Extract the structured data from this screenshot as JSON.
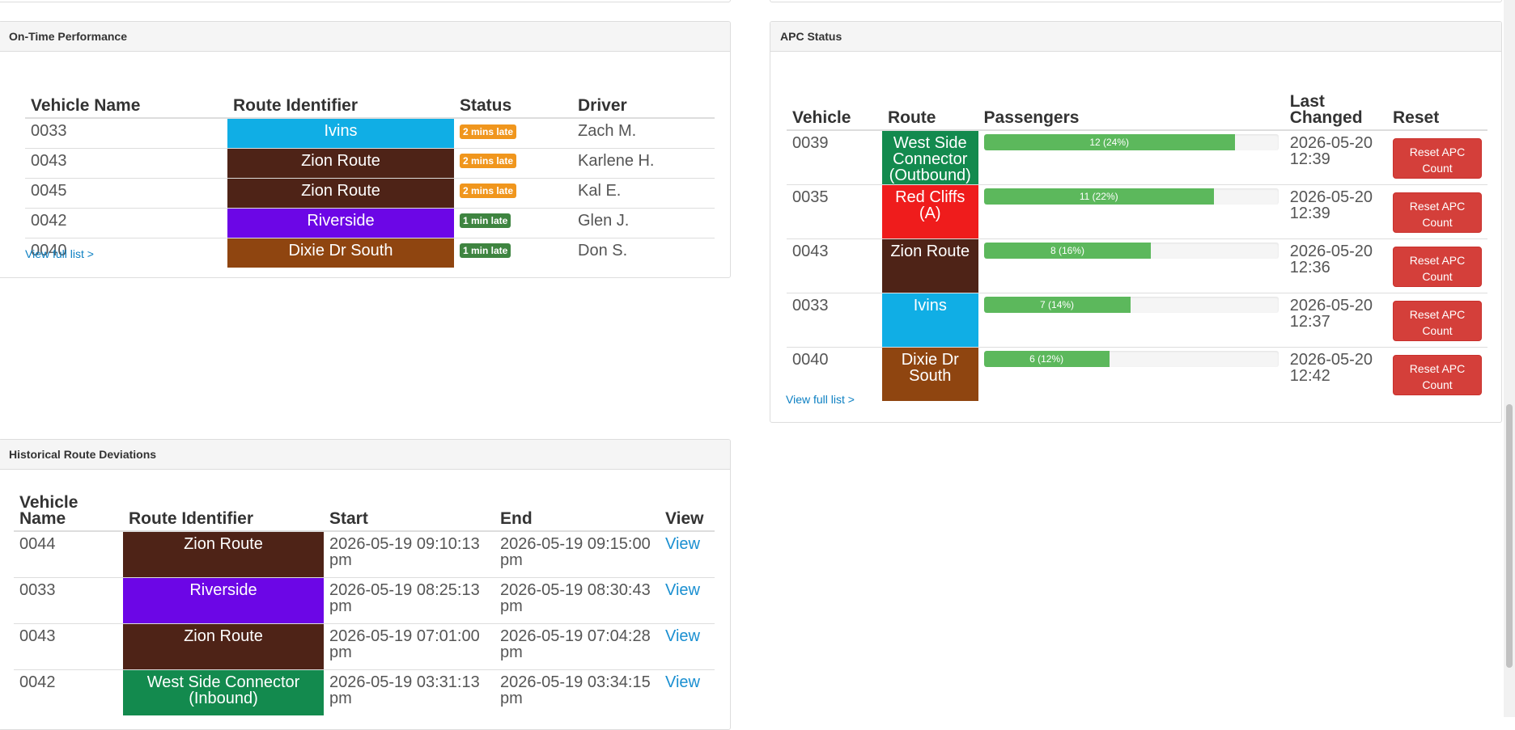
{
  "on_time": {
    "title": "On-Time Performance",
    "headers": [
      "Vehicle Name",
      "Route Identifier",
      "Status",
      "Driver"
    ],
    "rows": [
      {
        "vehicle": "0033",
        "route": "Ivins",
        "route_color": "#10aee5",
        "status": "2 mins late",
        "status_color": "#f0961d",
        "driver": "Zach M."
      },
      {
        "vehicle": "0043",
        "route": "Zion Route",
        "route_color": "#4e2317",
        "status": "2 mins late",
        "status_color": "#f0961d",
        "driver": "Karlene H."
      },
      {
        "vehicle": "0045",
        "route": "Zion Route",
        "route_color": "#4e2317",
        "status": "2 mins late",
        "status_color": "#f0961d",
        "driver": "Kal E."
      },
      {
        "vehicle": "0042",
        "route": "Riverside",
        "route_color": "#6c06e6",
        "status": "1 min late",
        "status_color": "#3e8440",
        "driver": "Glen J."
      },
      {
        "vehicle": "0040",
        "route": "Dixie Dr South",
        "route_color": "#8f4510",
        "status": "1 min late",
        "status_color": "#3e8440",
        "driver": "Don S."
      }
    ],
    "view_full": "View full list >"
  },
  "apc": {
    "title": "APC Status",
    "headers": [
      "Vehicle",
      "Route",
      "Passengers",
      "Last Changed",
      "Reset"
    ],
    "rows": [
      {
        "vehicle": "0039",
        "route": "West Side Connector (Outbound)",
        "route_color": "#138a4e",
        "passengers": 12,
        "percent": 24,
        "label": "12 (24%)",
        "date": "2026-05-20",
        "time": "12:39",
        "reset": "Reset APC Count"
      },
      {
        "vehicle": "0035",
        "route": "Red Cliffs (A)",
        "route_color": "#ef1c1c",
        "passengers": 11,
        "percent": 22,
        "label": "11 (22%)",
        "date": "2026-05-20",
        "time": "12:39",
        "reset": "Reset APC Count"
      },
      {
        "vehicle": "0043",
        "route": "Zion Route",
        "route_color": "#4e2317",
        "passengers": 8,
        "percent": 16,
        "label": "8 (16%)",
        "date": "2026-05-20",
        "time": "12:36",
        "reset": "Reset APC Count"
      },
      {
        "vehicle": "0033",
        "route": "Ivins",
        "route_color": "#10aee5",
        "passengers": 7,
        "percent": 14,
        "label": "7 (14%)",
        "date": "2026-05-20",
        "time": "12:37",
        "reset": "Reset APC Count"
      },
      {
        "vehicle": "0040",
        "route": "Dixie Dr South",
        "route_color": "#8f4510",
        "passengers": 6,
        "percent": 12,
        "label": "6 (12%)",
        "date": "2026-05-20",
        "time": "12:42",
        "reset": "Reset APC Count"
      }
    ],
    "view_full": "View full list >"
  },
  "deviations": {
    "title": "Historical Route Deviations",
    "headers": [
      "Vehicle Name",
      "Route Identifier",
      "Start",
      "End",
      "View"
    ],
    "rows": [
      {
        "vehicle": "0044",
        "route": "Zion Route",
        "route_color": "#4e2317",
        "start": "2026-05-19 09:10:13 pm",
        "end": "2026-05-19 09:15:00 pm",
        "view": "View"
      },
      {
        "vehicle": "0033",
        "route": "Riverside",
        "route_color": "#6c06e6",
        "start": "2026-05-19 08:25:13 pm",
        "end": "2026-05-19 08:30:43 pm",
        "view": "View"
      },
      {
        "vehicle": "0043",
        "route": "Zion Route",
        "route_color": "#4e2317",
        "start": "2026-05-19 07:01:00 pm",
        "end": "2026-05-19 07:04:28 pm",
        "view": "View"
      },
      {
        "vehicle": "0042",
        "route": "West Side Connector (Inbound)",
        "route_color": "#138a4e",
        "start": "2026-05-19 03:31:13 pm",
        "end": "2026-05-19 03:34:15 pm",
        "view": "View"
      }
    ]
  }
}
